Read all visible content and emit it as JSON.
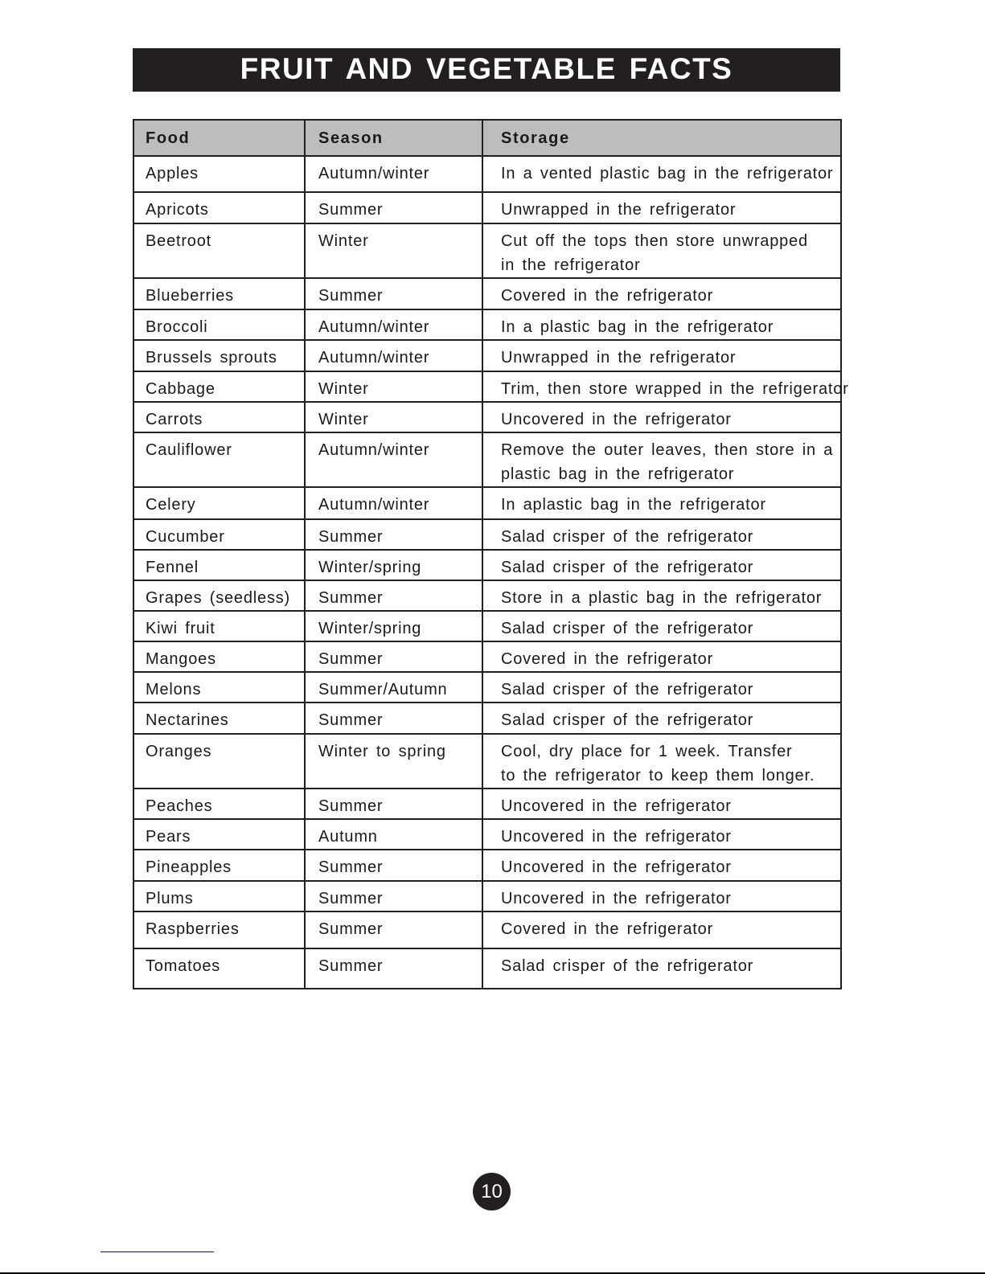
{
  "title": "FRUIT AND VEGETABLE FACTS",
  "table": {
    "headers": [
      "Food",
      "Season",
      "Storage"
    ],
    "rows": [
      [
        "Apples",
        "Autumn/winter",
        "In a vented plastic bag in the refrigerator"
      ],
      [
        "Apricots",
        "Summer",
        "Unwrapped in the refrigerator"
      ],
      [
        "Beetroot",
        "Winter",
        "Cut off the tops then store unwrapped\nin the refrigerator"
      ],
      [
        "Blueberries",
        "Summer",
        "Covered in the refrigerator"
      ],
      [
        "Broccoli",
        "Autumn/winter",
        "In a plastic bag in the refrigerator"
      ],
      [
        "Brussels sprouts",
        "Autumn/winter",
        "Unwrapped in the refrigerator"
      ],
      [
        "Cabbage",
        "Winter",
        "Trim, then store wrapped in the refrigerator"
      ],
      [
        "Carrots",
        "Winter",
        "Uncovered in the refrigerator"
      ],
      [
        "Cauliflower",
        "Autumn/winter",
        "Remove the outer leaves, then store in a\nplastic bag in the refrigerator"
      ],
      [
        "Celery",
        "Autumn/winter",
        "In aplastic bag in the refrigerator"
      ],
      [
        "Cucumber",
        "Summer",
        "Salad crisper of the refrigerator"
      ],
      [
        "Fennel",
        "Winter/spring",
        "Salad crisper of the refrigerator"
      ],
      [
        "Grapes (seedless)",
        "Summer",
        "Store in a plastic bag in the refrigerator"
      ],
      [
        "Kiwi fruit",
        "Winter/spring",
        "Salad crisper of the refrigerator"
      ],
      [
        "Mangoes",
        "Summer",
        "Covered in the refrigerator"
      ],
      [
        "Melons",
        "Summer/Autumn",
        "Salad crisper of the refrigerator"
      ],
      [
        "Nectarines",
        "Summer",
        "Salad crisper of the refrigerator"
      ],
      [
        "Oranges",
        "Winter to spring",
        "Cool, dry place for 1 week. Transfer\nto the refrigerator to keep them longer."
      ],
      [
        "Peaches",
        "Summer",
        "Uncovered in the refrigerator"
      ],
      [
        "Pears",
        "Autumn",
        "Uncovered in the refrigerator"
      ],
      [
        "Pineapples",
        "Summer",
        "Uncovered in the refrigerator"
      ],
      [
        "Plums",
        "Summer",
        "Uncovered in the refrigerator"
      ],
      [
        "Raspberries",
        "Summer",
        "Covered in the refrigerator"
      ],
      [
        "Tomatoes",
        "Summer",
        "Salad crisper of the refrigerator"
      ]
    ]
  },
  "page_number": "10"
}
